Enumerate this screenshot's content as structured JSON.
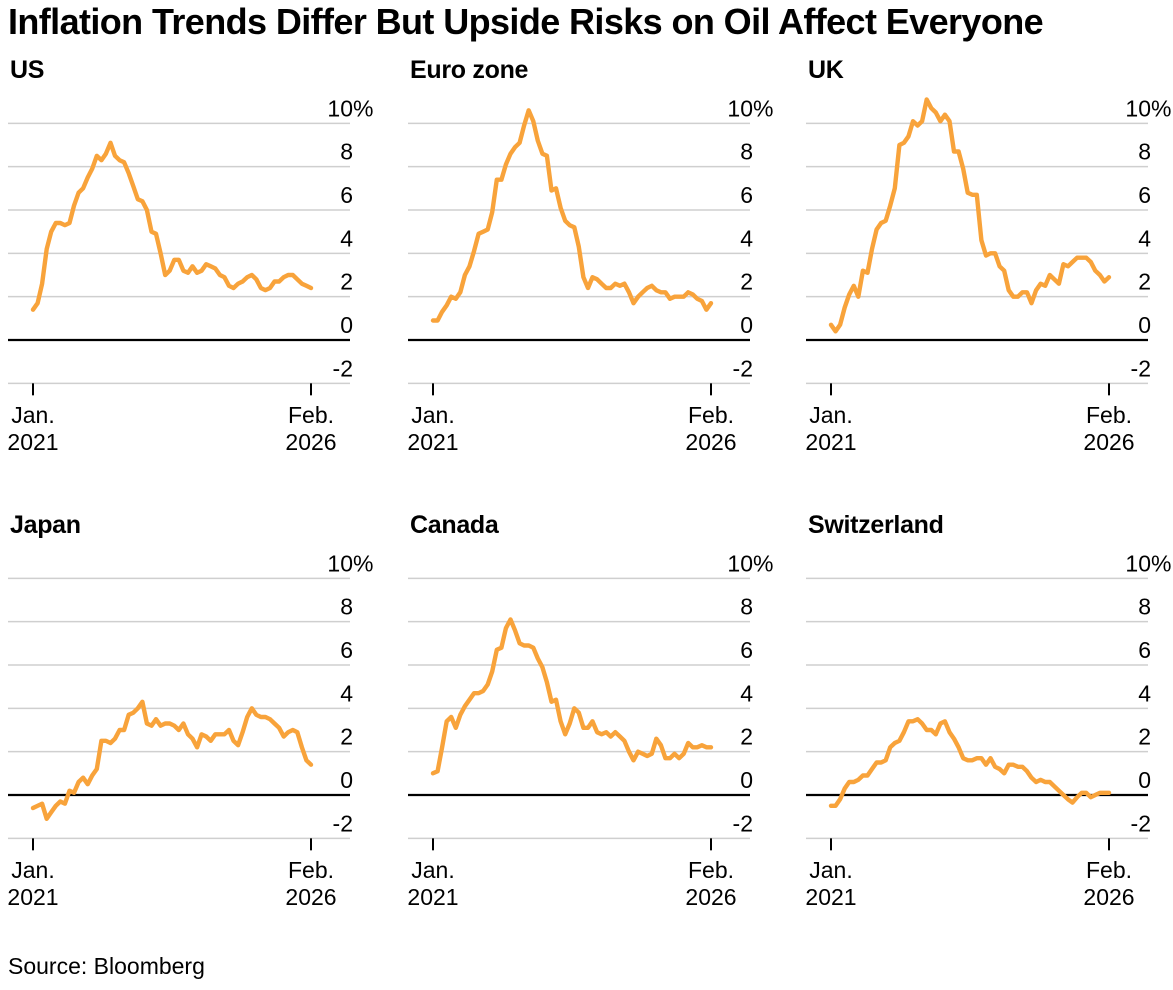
{
  "title": "Inflation Trends Differ But Upside Risks on Oil Affect Everyone",
  "source": "Source: Bloomberg",
  "colors": {
    "line": "#F8A33B",
    "grid": "#CFCFCF",
    "zero_axis": "#000000",
    "text": "#000000",
    "background": "#FFFFFF"
  },
  "axis": {
    "ylim": [
      -2,
      10
    ],
    "unit": "%",
    "grid": true,
    "y_ticks": [
      {
        "value": 10,
        "label": "10%"
      },
      {
        "value": 8,
        "label": "8"
      },
      {
        "value": 6,
        "label": "6"
      },
      {
        "value": 4,
        "label": "4"
      },
      {
        "value": 2,
        "label": "2"
      },
      {
        "value": 0,
        "label": "0"
      },
      {
        "value": -2,
        "label": "-2"
      }
    ],
    "x_ticks": [
      {
        "line1": "Jan.",
        "line2": "2021"
      },
      {
        "line1": "Feb.",
        "line2": "2026"
      }
    ]
  },
  "chart_data": [
    {
      "type": "line",
      "id": "us",
      "title": "US",
      "frequency": "monthly",
      "x_start_label": "Jan. 2021",
      "x_end_label": "Feb. 2026",
      "ylim": [
        -2,
        10
      ],
      "unit": "% YoY",
      "values": [
        1.4,
        1.7,
        2.6,
        4.2,
        5.0,
        5.4,
        5.4,
        5.3,
        5.4,
        6.2,
        6.8,
        7.0,
        7.5,
        7.9,
        8.5,
        8.3,
        8.6,
        9.1,
        8.5,
        8.3,
        8.2,
        7.7,
        7.1,
        6.5,
        6.4,
        6.0,
        5.0,
        4.9,
        4.0,
        3.0,
        3.2,
        3.7,
        3.7,
        3.2,
        3.1,
        3.4,
        3.1,
        3.2,
        3.5,
        3.4,
        3.3,
        3.0,
        2.9,
        2.5,
        2.4,
        2.6,
        2.7,
        2.9,
        3.0,
        2.8,
        2.4,
        2.3,
        2.4,
        2.7,
        2.7,
        2.9,
        3.0,
        3.0,
        2.8,
        2.6,
        2.5,
        2.4
      ]
    },
    {
      "type": "line",
      "id": "euro-zone",
      "title": "Euro zone",
      "frequency": "monthly",
      "x_start_label": "Jan. 2021",
      "x_end_label": "Feb. 2026",
      "ylim": [
        -2,
        10
      ],
      "unit": "% YoY",
      "values": [
        0.9,
        0.9,
        1.3,
        1.6,
        2.0,
        1.9,
        2.2,
        3.0,
        3.4,
        4.1,
        4.9,
        5.0,
        5.1,
        5.9,
        7.4,
        7.4,
        8.1,
        8.6,
        8.9,
        9.1,
        9.9,
        10.6,
        10.1,
        9.2,
        8.6,
        8.5,
        6.9,
        7.0,
        6.1,
        5.5,
        5.3,
        5.2,
        4.3,
        2.9,
        2.4,
        2.9,
        2.8,
        2.6,
        2.4,
        2.4,
        2.6,
        2.5,
        2.6,
        2.2,
        1.7,
        2.0,
        2.2,
        2.4,
        2.5,
        2.3,
        2.2,
        2.2,
        1.9,
        2.0,
        2.0,
        2.0,
        2.2,
        2.1,
        1.9,
        1.8,
        1.4,
        1.7
      ]
    },
    {
      "type": "line",
      "id": "uk",
      "title": "UK",
      "frequency": "monthly",
      "x_start_label": "Jan. 2021",
      "x_end_label": "Feb. 2026",
      "ylim": [
        -2,
        10
      ],
      "unit": "% YoY",
      "values": [
        0.7,
        0.4,
        0.7,
        1.5,
        2.1,
        2.5,
        2.0,
        3.2,
        3.1,
        4.2,
        5.1,
        5.4,
        5.5,
        6.2,
        7.0,
        9.0,
        9.1,
        9.4,
        10.1,
        9.9,
        10.1,
        11.1,
        10.7,
        10.5,
        10.1,
        10.4,
        10.1,
        8.7,
        8.7,
        7.9,
        6.8,
        6.7,
        6.7,
        4.6,
        3.9,
        4.0,
        4.0,
        3.4,
        3.2,
        2.3,
        2.0,
        2.0,
        2.2,
        2.2,
        1.7,
        2.3,
        2.6,
        2.5,
        3.0,
        2.8,
        2.6,
        3.5,
        3.4,
        3.6,
        3.8,
        3.8,
        3.8,
        3.6,
        3.2,
        3.0,
        2.7,
        2.9
      ]
    },
    {
      "type": "line",
      "id": "japan",
      "title": "Japan",
      "frequency": "monthly",
      "x_start_label": "Jan. 2021",
      "x_end_label": "Feb. 2026",
      "ylim": [
        -2,
        10
      ],
      "unit": "% YoY",
      "values": [
        -0.6,
        -0.5,
        -0.4,
        -1.1,
        -0.8,
        -0.5,
        -0.3,
        -0.4,
        0.2,
        0.1,
        0.6,
        0.8,
        0.5,
        0.9,
        1.2,
        2.5,
        2.5,
        2.4,
        2.6,
        3.0,
        3.0,
        3.7,
        3.8,
        4.0,
        4.3,
        3.3,
        3.2,
        3.5,
        3.2,
        3.3,
        3.3,
        3.2,
        3.0,
        3.3,
        2.8,
        2.6,
        2.2,
        2.8,
        2.7,
        2.5,
        2.8,
        2.8,
        2.8,
        3.0,
        2.5,
        2.3,
        2.9,
        3.6,
        4.0,
        3.7,
        3.6,
        3.6,
        3.5,
        3.3,
        3.1,
        2.7,
        2.9,
        3.0,
        2.9,
        2.2,
        1.6,
        1.4
      ]
    },
    {
      "type": "line",
      "id": "canada",
      "title": "Canada",
      "frequency": "monthly",
      "x_start_label": "Jan. 2021",
      "x_end_label": "Feb. 2026",
      "ylim": [
        -2,
        10
      ],
      "unit": "% YoY",
      "values": [
        1.0,
        1.1,
        2.2,
        3.4,
        3.6,
        3.1,
        3.7,
        4.1,
        4.4,
        4.7,
        4.7,
        4.8,
        5.1,
        5.7,
        6.7,
        6.8,
        7.7,
        8.1,
        7.6,
        7.0,
        6.9,
        6.9,
        6.8,
        6.3,
        5.9,
        5.2,
        4.3,
        4.4,
        3.4,
        2.8,
        3.3,
        4.0,
        3.8,
        3.1,
        3.1,
        3.4,
        2.9,
        2.8,
        2.9,
        2.7,
        2.9,
        2.7,
        2.5,
        2.0,
        1.6,
        2.0,
        1.9,
        1.8,
        1.9,
        2.6,
        2.3,
        1.7,
        1.7,
        1.9,
        1.7,
        1.9,
        2.4,
        2.2,
        2.2,
        2.3,
        2.2,
        2.2
      ]
    },
    {
      "type": "line",
      "id": "switzerland",
      "title": "Switzerland",
      "frequency": "monthly",
      "x_start_label": "Jan. 2021",
      "x_end_label": "Feb. 2026",
      "ylim": [
        -2,
        10
      ],
      "unit": "% YoY",
      "values": [
        -0.5,
        -0.5,
        -0.2,
        0.3,
        0.6,
        0.6,
        0.7,
        0.9,
        0.9,
        1.2,
        1.5,
        1.5,
        1.6,
        2.2,
        2.4,
        2.5,
        2.9,
        3.4,
        3.4,
        3.5,
        3.3,
        3.0,
        3.0,
        2.8,
        3.3,
        3.4,
        2.9,
        2.6,
        2.2,
        1.7,
        1.6,
        1.6,
        1.7,
        1.7,
        1.4,
        1.7,
        1.3,
        1.2,
        1.0,
        1.4,
        1.4,
        1.3,
        1.3,
        1.1,
        0.8,
        0.6,
        0.7,
        0.6,
        0.6,
        0.4,
        0.2,
        0.0,
        -0.2,
        -0.35,
        -0.1,
        0.1,
        0.1,
        -0.1,
        0.0,
        0.1,
        0.1,
        0.1
      ]
    }
  ]
}
